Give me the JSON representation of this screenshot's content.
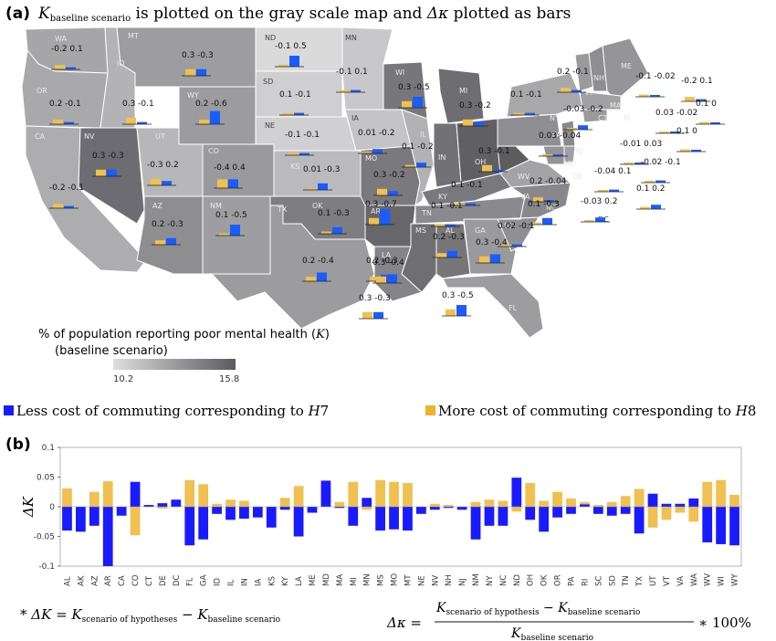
{
  "panel_a": {
    "label": "(a)",
    "title_k": "K",
    "title_k_sub": "baseline scenario",
    "title_mid": " is plotted on the gray scale map and ",
    "title_delta": "Δκ",
    "title_end": " plotted as bars"
  },
  "map_legend": {
    "title_line1": "% of population reporting poor mental health (",
    "title_var": "K",
    "title_close": ")",
    "title_line2": "(baseline scenario)",
    "min": "10.2",
    "max": "15.8"
  },
  "bar_legend": {
    "less_label": "Less cost of commuting corresponding to ",
    "less_var": "H",
    "less_num": "7",
    "more_label": "More cost of commuting corresponding to ",
    "more_var": "H",
    "more_num": "8",
    "less_color": "#1a1aff",
    "more_color": "#f0c050"
  },
  "panel_b": {
    "label": "(b)",
    "ylabel": "ΔK"
  },
  "footnotes": {
    "left_star": "* ",
    "left_expr_a": "ΔK = K",
    "left_sub_a": "scenario of hypotheses",
    "left_expr_b": " − K",
    "left_sub_b": "baseline  scenario",
    "right_lhs": "Δκ =",
    "right_num_a": "K",
    "right_num_sub_a": "scenario of hypothesis",
    "right_num_mid": " − K",
    "right_num_sub_b": "baseline scenario",
    "right_den": "K",
    "right_den_sub": "baseline scenario",
    "right_tail": " ∗ 100%"
  },
  "map_states": [
    {
      "abbr": "WA",
      "v1": "-0.2",
      "v2": "0.1"
    },
    {
      "abbr": "MT",
      "v1": "0.3",
      "v2": "-0.3"
    },
    {
      "abbr": "ND",
      "v1": "-0.1",
      "v2": "0.5"
    },
    {
      "abbr": "MN",
      "v1": "-0.1",
      "v2": "0.1"
    },
    {
      "abbr": "OR",
      "v1": "0.2",
      "v2": "-0.1"
    },
    {
      "abbr": "ID",
      "v1": "0.3",
      "v2": "-0.1"
    },
    {
      "abbr": "WY",
      "v1": "0.2",
      "v2": "-0.6"
    },
    {
      "abbr": "SD",
      "v1": "0.1",
      "v2": "-0.1"
    },
    {
      "abbr": "WI",
      "v1": "0.3",
      "v2": "-0.5"
    },
    {
      "abbr": "MI",
      "v1": "0.3",
      "v2": "-0.2"
    },
    {
      "abbr": "NY",
      "v1": "0.1",
      "v2": "-0.1"
    },
    {
      "abbr": "VT",
      "v1": "0.2",
      "v2": "-0.1"
    },
    {
      "abbr": "ME",
      "v1": "-0.1",
      "v2": "-0.02"
    },
    {
      "abbr": "NH",
      "v1": "-0.2",
      "v2": "0.1"
    },
    {
      "abbr": "MA",
      "v1": "0.1",
      "v2": "0"
    },
    {
      "abbr": "CT",
      "v1": "0.03",
      "v2": "-0.02"
    },
    {
      "abbr": "RI",
      "v1": "0.1",
      "v2": "0"
    },
    {
      "abbr": "NE",
      "v1": "-0.1",
      "v2": "-0.1"
    },
    {
      "abbr": "IA",
      "v1": "0.01",
      "v2": "-0.2"
    },
    {
      "abbr": "IL",
      "v1": "0.1",
      "v2": "-0.2"
    },
    {
      "abbr": "PA",
      "v1": "-0.03",
      "v2": "-0.2"
    },
    {
      "abbr": "NJ",
      "v1": "-0.01",
      "v2": "0.03"
    },
    {
      "abbr": "OH",
      "v1": "0.3",
      "v2": "-0.1"
    },
    {
      "abbr": "IN",
      "v1": "0.03",
      "v2": "-0.04"
    },
    {
      "abbr": "NV",
      "v1": "0.3",
      "v2": "-0.3"
    },
    {
      "abbr": "UT",
      "v1": "-0.3",
      "v2": "0.2"
    },
    {
      "abbr": "CO",
      "v1": "-0.4",
      "v2": "0.4"
    },
    {
      "abbr": "KS",
      "v1": "0.01",
      "v2": "-0.3"
    },
    {
      "abbr": "MO",
      "v1": "0.3",
      "v2": "-0.2"
    },
    {
      "abbr": "DE",
      "v1": "-0.02",
      "v2": "-0.1"
    },
    {
      "abbr": "MD",
      "v1": "-0.04",
      "v2": "0.1"
    },
    {
      "abbr": "CA",
      "v1": "-0.2",
      "v2": "-0.1"
    },
    {
      "abbr": "WV",
      "v1": "0.2",
      "v2": "-0.04"
    },
    {
      "abbr": "KY",
      "v1": "0.1",
      "v2": "-0.1"
    },
    {
      "abbr": "DC",
      "v1": "0.1",
      "v2": "0.2"
    },
    {
      "abbr": "VA",
      "v1": "-0.03",
      "v2": "0.2"
    },
    {
      "abbr": "AZ",
      "v1": "0.2",
      "v2": "-0.3"
    },
    {
      "abbr": "NM",
      "v1": "0.1",
      "v2": "-0.5"
    },
    {
      "abbr": "OK",
      "v1": "0.1",
      "v2": "-0.3"
    },
    {
      "abbr": "AR",
      "v1": "0.3",
      "v2": "-0.7"
    },
    {
      "abbr": "TN",
      "v1": "0.1",
      "v2": "-0.1"
    },
    {
      "abbr": "NC",
      "v1": "0.1",
      "v2": "-0.3"
    },
    {
      "abbr": "SC",
      "v1": "0.02",
      "v2": "-0.1"
    },
    {
      "abbr": "MS",
      "v1": "0.2",
      "v2": "-0.3"
    },
    {
      "abbr": "AL",
      "v1": "0.2",
      "v2": "-0.3"
    },
    {
      "abbr": "GA",
      "v1": "0.3",
      "v2": "-0.4"
    },
    {
      "abbr": "TX",
      "v1": "0.2",
      "v2": "-0.4"
    },
    {
      "abbr": "LA",
      "v1": "0.3",
      "v2": "-0.4"
    },
    {
      "abbr": "HI",
      "v1": "0.3",
      "v2": "-0.3"
    },
    {
      "abbr": "FL",
      "v1": "0.3",
      "v2": "-0.5"
    }
  ],
  "chart_data": {
    "type": "bar",
    "title": "",
    "xlabel": "",
    "ylabel": "ΔK",
    "ylim": [
      -0.1,
      0.1
    ],
    "yticks": [
      -0.1,
      -0.05,
      0,
      0.05,
      0.1
    ],
    "grid": false,
    "categories": [
      "AL",
      "AK",
      "AZ",
      "AR",
      "CA",
      "CO",
      "CT",
      "DE",
      "DC",
      "FL",
      "GA",
      "ID",
      "IL",
      "IN",
      "IA",
      "KS",
      "KY",
      "LA",
      "ME",
      "MD",
      "MA",
      "MI",
      "MN",
      "MS",
      "MO",
      "MT",
      "NE",
      "NV",
      "NH",
      "NJ",
      "NM",
      "NY",
      "NC",
      "ND",
      "OH",
      "OK",
      "OR",
      "PA",
      "RI",
      "SC",
      "SD",
      "TN",
      "TX",
      "UT",
      "VT",
      "VA",
      "WA",
      "WV",
      "WI",
      "WY"
    ],
    "series": [
      {
        "name": "Less cost of commuting corresponding to H7",
        "color": "#1a1aff",
        "values": [
          -0.04,
          -0.042,
          -0.032,
          -0.1,
          -0.015,
          0.042,
          0.003,
          0.006,
          0.012,
          -0.065,
          -0.055,
          -0.012,
          -0.022,
          -0.02,
          -0.018,
          -0.035,
          -0.005,
          -0.05,
          -0.01,
          0.044,
          -0.002,
          -0.032,
          0.015,
          -0.04,
          -0.038,
          -0.04,
          -0.012,
          -0.005,
          -0.002,
          -0.005,
          -0.055,
          -0.032,
          -0.032,
          0.049,
          -0.022,
          -0.042,
          -0.018,
          -0.012,
          0.004,
          -0.012,
          -0.015,
          -0.012,
          -0.045,
          0.022,
          0.005,
          0.005,
          0.014,
          -0.06,
          -0.063,
          -0.065
        ]
      },
      {
        "name": "More cost of commuting corresponding to H8",
        "color": "#f0c050",
        "values": [
          0.031,
          -0.012,
          0.025,
          0.043,
          -0.008,
          -0.048,
          0.001,
          -0.003,
          0.002,
          0.045,
          0.038,
          0.005,
          0.012,
          0.01,
          -0.003,
          -0.005,
          0.015,
          0.035,
          -0.004,
          0.02,
          0.008,
          0.042,
          -0.005,
          0.045,
          0.042,
          0.04,
          -0.005,
          0.005,
          0.003,
          -0.002,
          0.008,
          0.012,
          0.01,
          -0.008,
          0.04,
          0.01,
          0.025,
          0.014,
          0.008,
          0.003,
          0.008,
          0.018,
          0.03,
          -0.035,
          -0.022,
          -0.01,
          -0.025,
          0.042,
          0.045,
          0.02
        ]
      }
    ]
  }
}
